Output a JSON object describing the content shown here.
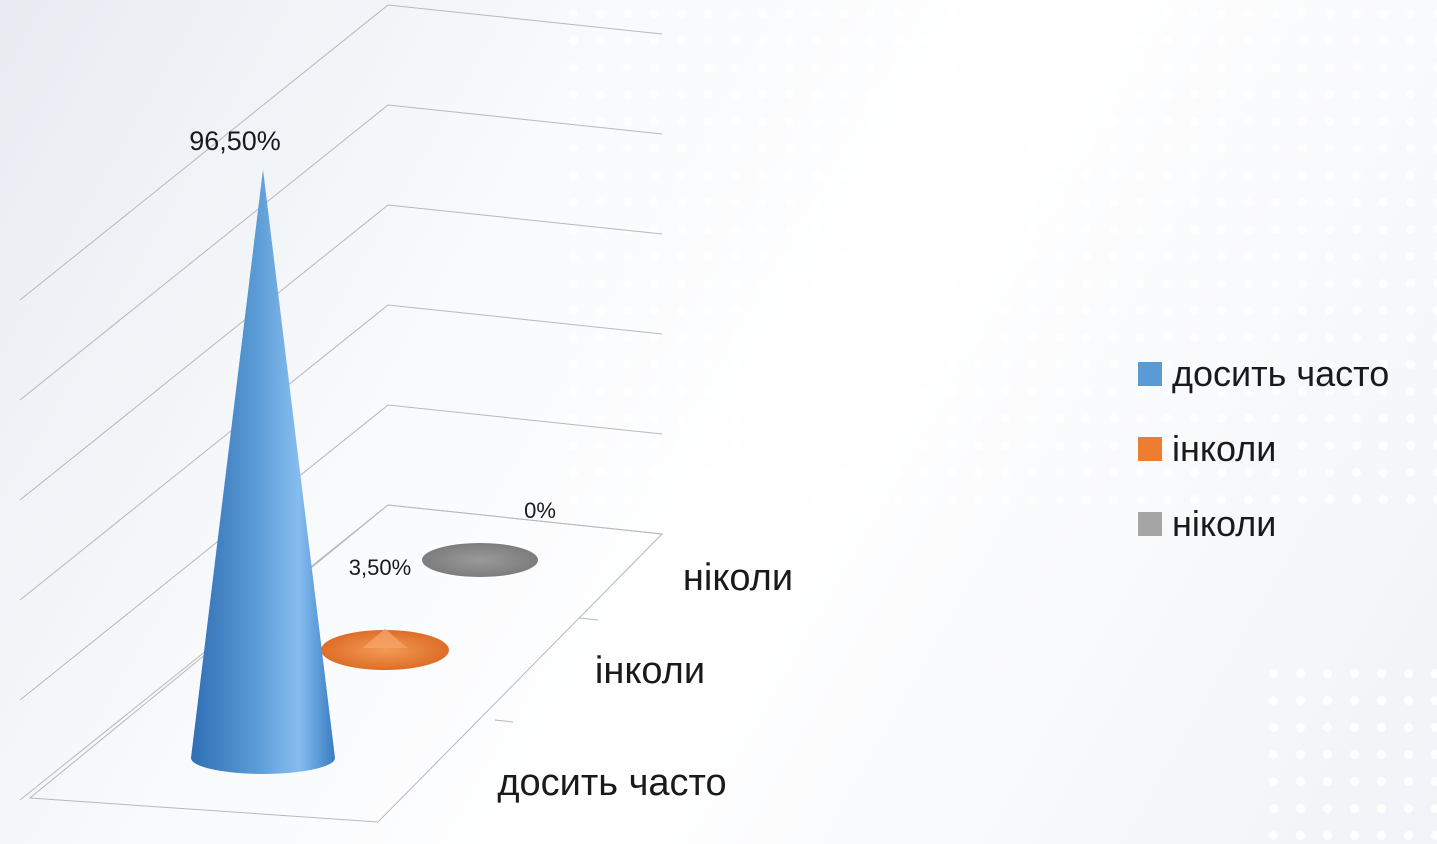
{
  "chart_data": {
    "type": "bar",
    "shape": "3d-cone",
    "categories": [
      "досить часто",
      "інколи",
      "ніколи"
    ],
    "values": [
      96.5,
      3.5,
      0
    ],
    "data_labels": [
      "96,50%",
      "3,50%",
      "0%"
    ],
    "colors": [
      "#5b9bd5",
      "#ed7d31",
      "#a5a5a5"
    ],
    "ylim": [
      0,
      100
    ],
    "grid": true,
    "legend": {
      "position": "right",
      "entries": [
        "досить часто",
        "інколи",
        "ніколи"
      ]
    }
  }
}
